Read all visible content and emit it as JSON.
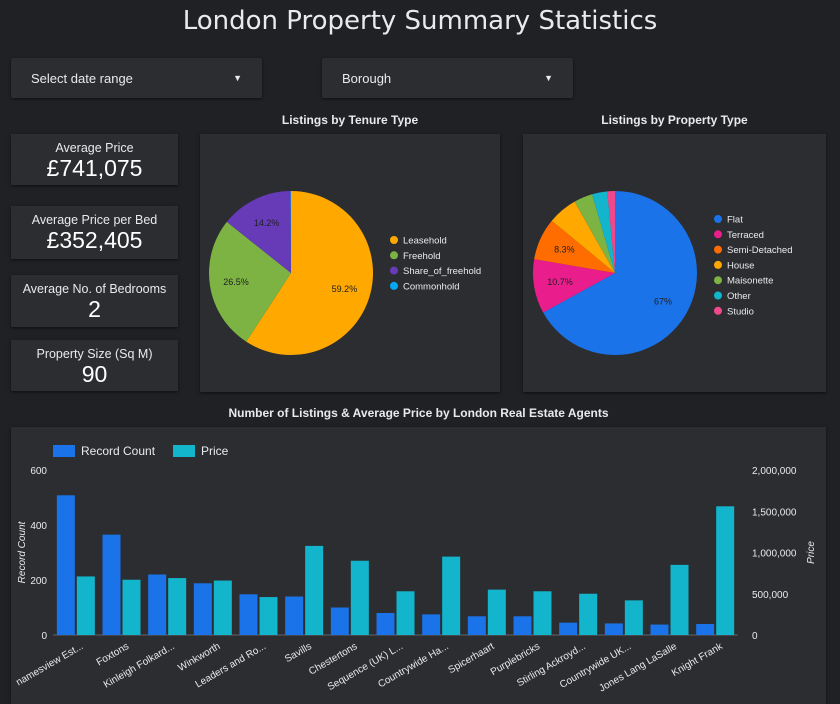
{
  "header": {
    "title": "London Property Summary Statistics"
  },
  "filters": {
    "date_range_label": "Select date range",
    "borough_label": "Borough"
  },
  "kpis": [
    {
      "label": "Average Price",
      "value": "£741,075"
    },
    {
      "label": "Average Price per Bed",
      "value": "£352,405"
    },
    {
      "label": "Average No. of Bedrooms",
      "value": "2"
    },
    {
      "label": "Property Size (Sq M)",
      "value": "90"
    }
  ],
  "chart_data": [
    {
      "type": "pie",
      "title": "Listings by Tenure Type",
      "legend_position": "right",
      "slices": [
        {
          "label": "Leasehold",
          "value": 59.2,
          "display": "59.2%",
          "color": "#ffa800"
        },
        {
          "label": "Freehold",
          "value": 26.5,
          "display": "26.5%",
          "color": "#7cb342"
        },
        {
          "label": "Share_of_freehold",
          "value": 14.2,
          "display": "14.2%",
          "color": "#673ab7"
        },
        {
          "label": "Commonhold",
          "value": 0.1,
          "display": "",
          "color": "#03a9f4"
        }
      ]
    },
    {
      "type": "pie",
      "title": "Listings by Property Type",
      "legend_position": "right",
      "slices": [
        {
          "label": "Flat",
          "value": 67,
          "display": "67%",
          "color": "#1a73e8"
        },
        {
          "label": "Terraced",
          "value": 10.7,
          "display": "10.7%",
          "color": "#e91e8c"
        },
        {
          "label": "Semi-Detached",
          "value": 8.3,
          "display": "8.3%",
          "color": "#ff6d00"
        },
        {
          "label": "House",
          "value": 5.8,
          "display": "",
          "color": "#ffa800"
        },
        {
          "label": "Maisonette",
          "value": 3.7,
          "display": "",
          "color": "#7cb342"
        },
        {
          "label": "Other",
          "value": 3.0,
          "display": "",
          "color": "#12b5cb"
        },
        {
          "label": "Studio",
          "value": 1.5,
          "display": "",
          "color": "#f0488d"
        }
      ]
    },
    {
      "type": "bar",
      "title": "Number of Listings & Average Price by London Real Estate Agents",
      "legend_position": "top-left",
      "categories": [
        "Hamptons / Thamesview Est...",
        "Foxtons",
        "Kinleigh Folkard...",
        "Winkworth",
        "Leaders and Ro...",
        "Savills",
        "Chestertons",
        "Sequence (UK) L...",
        "Countrywide Ha...",
        "Spicerhaart",
        "Purplebricks",
        "Stirling Ackroyd...",
        "Countrywide UK...",
        "Jones Lang LaSalle",
        "Knight Frank"
      ],
      "category_display": [
        "namesview Est...",
        "Foxtons",
        "Kinleigh Folkard...",
        "Winkworth",
        "Leaders and Ro...",
        "Savills",
        "Chestertons",
        "Sequence (UK) L...",
        "Countrywide Ha...",
        "Spicerhaart",
        "Purplebricks",
        "Stirling Ackroyd...",
        "Countrywide UK...",
        "Jones Lang LaSalle",
        "Knight Frank"
      ],
      "series": [
        {
          "name": "Record Count",
          "axis": "left",
          "color": "#1a73e8",
          "values": [
            508,
            365,
            220,
            188,
            148,
            140,
            100,
            80,
            75,
            68,
            68,
            45,
            42,
            38,
            40
          ]
        },
        {
          "name": "Price",
          "axis": "right",
          "color": "#12b5cb",
          "values": [
            710000,
            670000,
            690000,
            660000,
            460000,
            1080000,
            900000,
            530000,
            950000,
            550000,
            530000,
            500000,
            420000,
            850000,
            1560000
          ]
        }
      ],
      "ylabel_left": "Record Count",
      "ylabel_right": "Price",
      "ylim_left": [
        0,
        600
      ],
      "ylim_right": [
        0,
        2000000
      ],
      "yticks_left": [
        "0",
        "200",
        "400",
        "600"
      ],
      "yticks_right": [
        "0",
        "500,000",
        "1,000,000",
        "1,500,000",
        "2,000,000"
      ],
      "grid": false
    }
  ]
}
